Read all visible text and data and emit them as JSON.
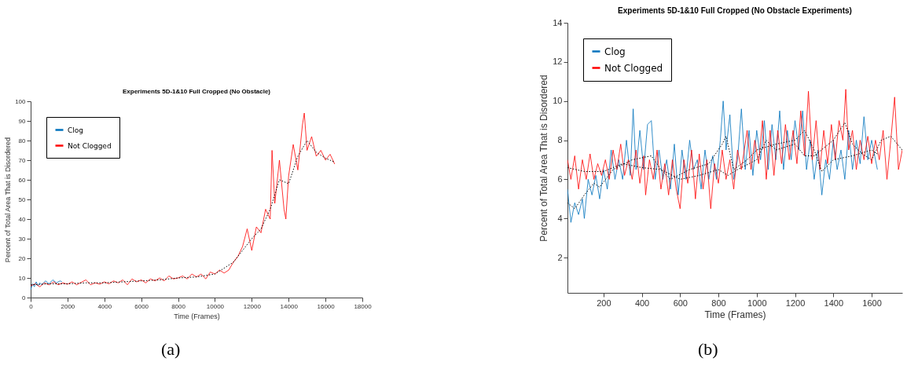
{
  "chart_data": [
    {
      "type": "line",
      "title": "Experiments 5D-1&10 Full Cropped (No Obstacle)",
      "xlabel": "Time (Frames)",
      "ylabel": "Percent of Total Area That is Disordered",
      "xlim": [
        0,
        18000
      ],
      "ylim": [
        0,
        100
      ],
      "xticks": [
        0,
        2000,
        4000,
        6000,
        8000,
        10000,
        12000,
        14000,
        16000,
        18000
      ],
      "yticks": [
        0,
        10,
        20,
        30,
        40,
        50,
        60,
        70,
        80,
        90,
        100
      ],
      "legend": "top left",
      "grid": false,
      "annotations": [
        "(a)"
      ],
      "series": [
        {
          "name": "Clog",
          "color": "#0072bd",
          "x": [
            0,
            100,
            200,
            300,
            400,
            500,
            600,
            800,
            1000,
            1200,
            1400,
            1600,
            1700
          ],
          "values": [
            4,
            7,
            5.5,
            8,
            6,
            7.5,
            6.5,
            8.5,
            7,
            9,
            7.5,
            8.5,
            8
          ]
        },
        {
          "name": "Not Clogged",
          "color": "#ff0000",
          "x": [
            0,
            250,
            500,
            750,
            1000,
            1250,
            1500,
            1750,
            2000,
            2250,
            2500,
            2750,
            3000,
            3250,
            3500,
            3750,
            4000,
            4250,
            4500,
            4750,
            5000,
            5250,
            5500,
            5750,
            6000,
            6250,
            6500,
            6750,
            7000,
            7250,
            7500,
            7750,
            8000,
            8250,
            8500,
            8750,
            9000,
            9250,
            9500,
            9750,
            10000,
            10250,
            10500,
            10750,
            11000,
            11250,
            11500,
            11750,
            12000,
            12250,
            12500,
            12750,
            13000,
            13100,
            13250,
            13500,
            13750,
            13850,
            14000,
            14250,
            14500,
            14750,
            14850,
            15000,
            15250,
            15500,
            15750,
            16000,
            16250,
            16500
          ],
          "values": [
            6,
            7,
            5.5,
            7.5,
            6.5,
            8,
            6.5,
            7.5,
            6.8,
            8,
            6.5,
            7.8,
            9,
            6.5,
            7.5,
            6.8,
            8,
            7,
            8.5,
            7.5,
            9,
            6.5,
            9.5,
            8,
            9,
            7.5,
            9.5,
            8.5,
            10,
            8.5,
            11,
            9.5,
            10,
            11,
            9.5,
            12,
            10.5,
            12,
            9.5,
            13,
            12,
            14,
            12.5,
            14,
            18,
            21,
            26,
            35,
            24,
            36,
            33,
            45,
            40,
            75,
            48,
            70,
            45,
            40,
            62,
            78,
            65,
            88,
            94,
            75,
            82,
            72,
            75,
            70,
            73,
            68
          ]
        },
        {
          "color": "#000000",
          "line_style": "dotted",
          "x": [
            0,
            1000,
            2000,
            3000,
            4000,
            5000,
            6000,
            7000,
            8000,
            9000,
            10000,
            11000,
            12000,
            12500,
            13000,
            13500,
            14000,
            14500,
            15000,
            15500,
            16000,
            16500
          ],
          "values": [
            6.5,
            7,
            7,
            7.5,
            7.5,
            8,
            8.5,
            9,
            10,
            10.5,
            12,
            18,
            30,
            35,
            45,
            60,
            58,
            72,
            80,
            74,
            71,
            69
          ]
        }
      ]
    },
    {
      "type": "line",
      "title": "Experiments 5D-1&10 Full Cropped (No Obstacle Experiments)",
      "xlabel": "Time (Frames)",
      "ylabel": "Percent of Total Area That is Disordered",
      "xlim": [
        12,
        1760
      ],
      "ylim": [
        0.2,
        14
      ],
      "xticks": [
        200,
        400,
        600,
        800,
        1000,
        1200,
        1400,
        1600
      ],
      "yticks": [
        2,
        4,
        6,
        8,
        10,
        12,
        14
      ],
      "legend": "top left",
      "grid": false,
      "annotations": [
        "(b)"
      ],
      "series": [
        {
          "name": "Clog",
          "color": "#0072bd",
          "x": [
            12,
            30,
            50,
            70,
            90,
            100,
            120,
            140,
            160,
            180,
            200,
            220,
            240,
            260,
            280,
            300,
            320,
            340,
            355,
            370,
            390,
            410,
            430,
            450,
            470,
            490,
            510,
            530,
            550,
            570,
            590,
            610,
            630,
            650,
            670,
            690,
            710,
            730,
            750,
            770,
            790,
            810,
            825,
            840,
            860,
            880,
            900,
            920,
            940,
            960,
            980,
            1000,
            1020,
            1040,
            1060,
            1080,
            1100,
            1120,
            1140,
            1160,
            1180,
            1200,
            1220,
            1240,
            1260,
            1280,
            1300,
            1320,
            1340,
            1360,
            1380,
            1400,
            1420,
            1440,
            1460,
            1480,
            1500,
            1520,
            1540,
            1560,
            1580,
            1600,
            1630
          ],
          "values": [
            5.5,
            3.8,
            4.8,
            4.2,
            5,
            4,
            6,
            5.2,
            6.2,
            5,
            6.5,
            5.5,
            7.5,
            6,
            7,
            6,
            8,
            6.2,
            9.6,
            6.5,
            8.5,
            6.5,
            8.8,
            9,
            6,
            7.5,
            6,
            7,
            5.5,
            7.8,
            5.2,
            7.5,
            6,
            8,
            6.5,
            7,
            5.5,
            7.5,
            6,
            7.2,
            6,
            8,
            10,
            7.5,
            9.3,
            6,
            7,
            9.6,
            6.5,
            8.5,
            6.2,
            8.5,
            7,
            9,
            6.5,
            8.8,
            7,
            9.5,
            6.5,
            8.5,
            7,
            9,
            7.5,
            9.5,
            6.5,
            8,
            6,
            7.5,
            5.2,
            7,
            6,
            8,
            6.5,
            7.5,
            6,
            8.5,
            6.5,
            8,
            6.8,
            9.2,
            7,
            8,
            6.5
          ]
        },
        {
          "name": "Not Clogged",
          "color": "#ff0000",
          "x": [
            12,
            30,
            50,
            70,
            90,
            110,
            130,
            150,
            170,
            190,
            210,
            230,
            250,
            270,
            290,
            310,
            330,
            350,
            370,
            390,
            410,
            420,
            440,
            460,
            480,
            500,
            520,
            540,
            560,
            580,
            600,
            620,
            640,
            660,
            680,
            700,
            720,
            740,
            760,
            780,
            800,
            820,
            840,
            860,
            880,
            900,
            920,
            950,
            970,
            990,
            1010,
            1030,
            1050,
            1070,
            1090,
            1110,
            1130,
            1150,
            1170,
            1190,
            1210,
            1230,
            1250,
            1270,
            1290,
            1310,
            1330,
            1350,
            1370,
            1390,
            1410,
            1430,
            1450,
            1465,
            1480,
            1500,
            1520,
            1540,
            1560,
            1580,
            1600,
            1620,
            1640,
            1660,
            1680,
            1700,
            1720,
            1740,
            1760
          ],
          "values": [
            7,
            6,
            7.2,
            5.5,
            7,
            6,
            7.3,
            6,
            6.8,
            6.2,
            7,
            6,
            7.5,
            6.5,
            7.8,
            6.2,
            7,
            6,
            7.5,
            5.8,
            7.2,
            5.2,
            7,
            6,
            7.5,
            5.5,
            6.8,
            5.2,
            7,
            5.5,
            4.5,
            7,
            5.8,
            7.5,
            5,
            7.3,
            5.5,
            7,
            4.5,
            6.8,
            5.8,
            7.5,
            6,
            7,
            5.5,
            7.5,
            6.5,
            8.5,
            6.5,
            8,
            6.8,
            9,
            6,
            8.5,
            6.2,
            8.5,
            6.8,
            8.8,
            7,
            8.5,
            6.8,
            9.5,
            7.2,
            10.5,
            7,
            9,
            6.5,
            8.5,
            6.8,
            8.8,
            7,
            9,
            8,
            10.6,
            7.5,
            8.5,
            6.5,
            8,
            7,
            8.2,
            6.8,
            8,
            7,
            8.5,
            6,
            8,
            10.2,
            6.5,
            7.5
          ]
        },
        {
          "color": "#000000",
          "line_style": "dotted",
          "x": [
            12,
            50,
            100,
            150,
            180,
            250,
            350,
            450,
            500,
            550,
            650,
            750,
            820,
            840,
            880,
            950,
            1000,
            1100,
            1200,
            1250,
            1300,
            1340,
            1400,
            1500,
            1600,
            1630
          ],
          "values": [
            4.8,
            4.5,
            5.2,
            5.8,
            5.6,
            6.5,
            7,
            7.2,
            6.5,
            6,
            6.5,
            6.8,
            7.8,
            8.2,
            6.5,
            7,
            7.5,
            7.8,
            8,
            8.5,
            7.5,
            6.4,
            7,
            7.2,
            7.5,
            7.3
          ]
        },
        {
          "color": "#000000",
          "line_style": "dotted",
          "x": [
            12,
            100,
            200,
            300,
            400,
            500,
            600,
            700,
            800,
            850,
            900,
            1000,
            1050,
            1100,
            1200,
            1250,
            1300,
            1400,
            1460,
            1500,
            1550,
            1600,
            1650,
            1700,
            1760
          ],
          "values": [
            6.6,
            6.4,
            6.4,
            6.8,
            6.6,
            6.5,
            6,
            6.2,
            6.5,
            6.2,
            6.5,
            7,
            8,
            7.5,
            7.8,
            7.2,
            7.2,
            8,
            8.9,
            7.8,
            7.3,
            7,
            8,
            8.2,
            7.5
          ]
        }
      ]
    }
  ]
}
